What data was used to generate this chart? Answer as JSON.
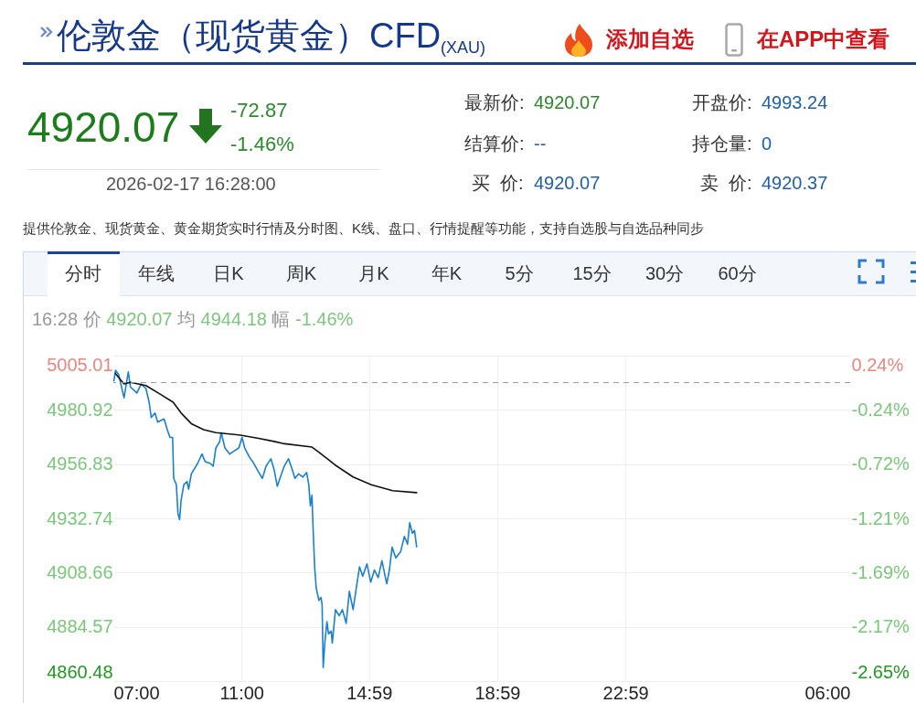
{
  "chart_data": [
    {
      "type": "other",
      "title": "伦敦金（现货黄金）CFD$_{(XAU)}$",
      "annotations": [
        "添加自选",
        "在APP中查看",
        "4920.07",
        "-72.87",
        "-1.46%",
        "2026-02-17 16:28:00",
        "最新价:",
        "4920.07",
        "开盘价:",
        "4993.24",
        "结算价:",
        "--",
        "持仓量:",
        "0",
        "买  价:",
        "4920.07",
        "卖  价:",
        "4920.37",
        "提供伦敦金、现货黄金、黄金期货实时行情及分时图、K线、盘口、行情提醒等功能，支持自选股与自选品种同步"
      ]
    },
    {
      "type": "line",
      "series": [
        {
          "color": "#1a80d0",
          "x": [
            "2026-02-17T07:01",
            "2026-02-17T07:04",
            "2026-02-17T07:10",
            "2026-02-17T07:20",
            "2026-02-17T07:28",
            "2026-02-17T07:32",
            "2026-02-17T07:44",
            "2026-02-17T07:52",
            "2026-02-17T08:01",
            "2026-02-17T08:07",
            "2026-02-17T08:11",
            "2026-02-17T08:18",
            "2026-02-17T08:23",
            "2026-02-17T08:35",
            "2026-02-17T08:41",
            "2026-02-17T08:46",
            "2026-02-17T08:51",
            "2026-02-17T08:53",
            "2026-02-17T08:58",
            "2026-02-17T09:01",
            "2026-02-17T09:04",
            "2026-02-17T09:07",
            "2026-02-17T09:12",
            "2026-02-17T09:18",
            "2026-02-17T09:21",
            "2026-02-17T09:26",
            "2026-02-17T09:38",
            "2026-02-17T09:46",
            "2026-02-17T09:52",
            "2026-02-17T10:01",
            "2026-02-17T10:07",
            "2026-02-17T10:12",
            "2026-02-17T10:19",
            "2026-02-17T10:22",
            "2026-02-17T10:29",
            "2026-02-17T10:38",
            "2026-02-17T10:46",
            "2026-02-17T10:55",
            "2026-02-17T11:01",
            "2026-02-17T11:06",
            "2026-02-17T11:15",
            "2026-02-17T11:23",
            "2026-02-17T11:29",
            "2026-02-17T11:39",
            "2026-02-17T11:46",
            "2026-02-17T11:55",
            "2026-02-17T12:01",
            "2026-02-17T12:07",
            "2026-02-17T12:15",
            "2026-02-17T12:20",
            "2026-02-17T12:28",
            "2026-02-17T12:35",
            "2026-02-17T12:40",
            "2026-02-17T12:47",
            "2026-02-17T12:55",
            "2026-02-17T13:02",
            "2026-02-17T13:06",
            "2026-02-17T13:09",
            "2026-02-17T13:12",
            "2026-02-17T13:14",
            "2026-02-17T13:17",
            "2026-02-17T13:20",
            "2026-02-17T13:25",
            "2026-02-17T13:29",
            "2026-02-17T13:31",
            "2026-02-17T13:33",
            "2026-02-17T13:36",
            "2026-02-17T13:40",
            "2026-02-17T13:43",
            "2026-02-17T13:48",
            "2026-02-17T13:50",
            "2026-02-17T13:56",
            "2026-02-17T14:03",
            "2026-02-17T14:09",
            "2026-02-17T14:16",
            "2026-02-17T14:22",
            "2026-02-17T14:29",
            "2026-02-17T14:35",
            "2026-02-17T14:41",
            "2026-02-17T14:47",
            "2026-02-17T14:55",
            "2026-02-17T15:02",
            "2026-02-17T15:09",
            "2026-02-17T15:16",
            "2026-02-17T15:23",
            "2026-02-17T15:32",
            "2026-02-17T15:37",
            "2026-02-17T15:42",
            "2026-02-17T15:49",
            "2026-02-17T15:58",
            "2026-02-17T16:05",
            "2026-02-17T16:11",
            "2026-02-17T16:15",
            "2026-02-17T16:20",
            "2026-02-17T16:24",
            "2026-02-17T16:28"
          ],
          "values": [
            4993.8,
            4998.5,
            4996.5,
            4986.3,
            4997.8,
            4991.1,
            4988.4,
            4992.4,
            4990.4,
            4984.3,
            4977.5,
            4979.5,
            4975.5,
            4976.9,
            4972.1,
            4968.7,
            4968.7,
            4950.5,
            4947.7,
            4934.9,
            4932.2,
            4940.9,
            4947.7,
            4949.1,
            4945.7,
            4952.5,
            4957.2,
            4961.3,
            4957.9,
            4957.2,
            4955.9,
            4964.0,
            4966.7,
            4970.8,
            4964.0,
            4961.3,
            4962.6,
            4964.0,
            4968.7,
            4964.0,
            4959.9,
            4957.2,
            4954.5,
            4950.5,
            4955.9,
            4959.2,
            4954.5,
            4947.0,
            4952.5,
            4955.9,
            4959.2,
            4954.5,
            4950.5,
            4952.5,
            4951.1,
            4953.1,
            4947.7,
            4938.3,
            4943.0,
            4928.8,
            4911.2,
            4901.7,
            4896.3,
            4897.6,
            4894.2,
            4866.5,
            4877.3,
            4886.8,
            4881.4,
            4882.7,
            4877.3,
            4892.2,
            4889.5,
            4892.2,
            4886.1,
            4900.3,
            4892.2,
            4901.7,
            4911.2,
            4907.1,
            4912.5,
            4904.4,
            4909.8,
            4906.4,
            4913.9,
            4903.7,
            4909.8,
            4919.9,
            4915.2,
            4917.9,
            4924.7,
            4921.3,
            4930.8,
            4926.1,
            4927.4,
            4920.07
          ]
        },
        {
          "color": "#111111",
          "x": [
            "2026-02-17T07:04",
            "2026-02-17T07:20",
            "2026-02-17T07:32",
            "2026-02-17T08:01",
            "2026-02-17T08:29",
            "2026-02-17T08:52",
            "2026-02-17T09:07",
            "2026-02-17T09:26",
            "2026-02-17T09:49",
            "2026-02-17T10:12",
            "2026-02-17T10:58",
            "2026-02-17T11:32",
            "2026-02-17T12:01",
            "2026-02-17T12:17",
            "2026-02-17T13:12",
            "2026-02-17T13:26",
            "2026-02-17T13:55",
            "2026-02-17T14:29",
            "2026-02-17T15:03",
            "2026-02-17T15:43",
            "2026-02-17T16:28"
          ],
          "values": [
            4997.0,
            4992.4,
            4993.1,
            4991.7,
            4987.7,
            4984.3,
            4979.5,
            4974.8,
            4972.1,
            4970.8,
            4969.7,
            4968.3,
            4966.9,
            4966.0,
            4964.4,
            4961.9,
            4956.5,
            4951.1,
            4947.7,
            4945.0,
            4944.18
          ]
        }
      ],
      "xlim": [
        "2026-02-17T07:00",
        "2026-02-18T06:00"
      ],
      "xticks": [
        {
          "value": "2026-02-17T07:00",
          "label": "07:00"
        },
        {
          "value": "2026-02-17T11:00",
          "label": "11:00"
        },
        {
          "value": "2026-02-17T14:59",
          "label": "14:59"
        },
        {
          "value": "2026-02-17T18:59",
          "label": "18:59"
        },
        {
          "value": "2026-02-17T22:59",
          "label": "22:59"
        },
        {
          "value": "2026-02-18T06:00",
          "label": "06:00"
        }
      ],
      "ylim": [
        4860.48,
        5005.01
      ],
      "yticks": [
        4860.48,
        4884.57,
        4908.66,
        4932.74,
        4956.83,
        4980.92,
        5005.01
      ],
      "y2lim": [
        -2.65,
        0.24
      ],
      "y2ticks": [
        {
          "value": -2.65,
          "label": "-2.65%"
        },
        {
          "value": -2.17,
          "label": "-2.17%"
        },
        {
          "value": -1.69,
          "label": "-1.69%"
        },
        {
          "value": -1.21,
          "label": "-1.21%"
        },
        {
          "value": -0.72,
          "label": "-0.72%"
        },
        {
          "value": -0.24,
          "label": "-0.24%"
        },
        {
          "value": 0.24,
          "label": "0.24%"
        }
      ],
      "ref_lines": [
        {
          "axis": "y2",
          "value": 0,
          "color": "#999999",
          "line_style": "dashed"
        }
      ],
      "grid": true,
      "annotations": [
        "分时",
        "年线",
        "日K",
        "周K",
        "月K",
        "年K",
        "5分",
        "15分",
        "30分",
        "60分",
        "16:28",
        "价",
        "4920.07",
        "均",
        "4944.18",
        "幅",
        "-1.46%"
      ]
    }
  ]
}
